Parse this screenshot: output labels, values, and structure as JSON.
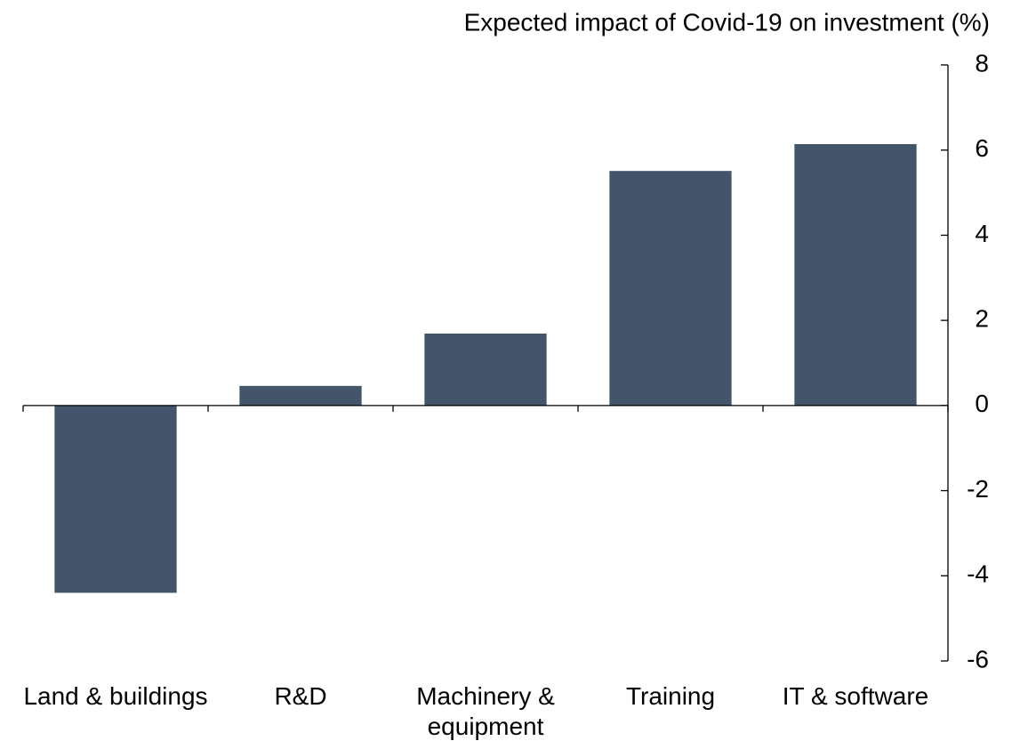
{
  "chart_data": {
    "type": "bar",
    "title": "Expected impact of Covid-19 on investment (%)",
    "categories": [
      "Land & buildings",
      "R&D",
      "Machinery & equipment",
      "Training",
      "IT & software"
    ],
    "values": [
      -4.4,
      0.46,
      1.69,
      5.51,
      6.14
    ],
    "color": "#44546a",
    "ylim": [
      -6,
      8
    ],
    "yticks": [
      -6,
      -4,
      -2,
      0,
      2,
      4,
      6,
      8
    ],
    "grid": false
  }
}
